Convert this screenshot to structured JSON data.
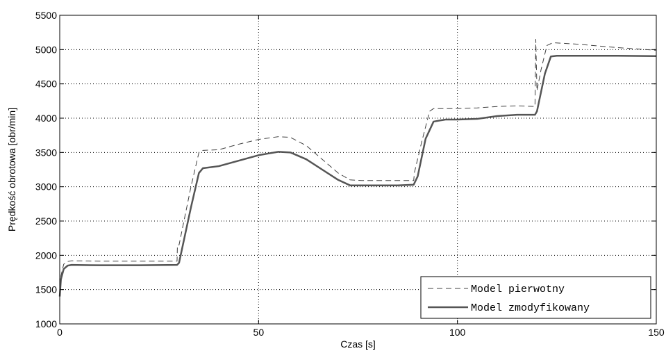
{
  "chart_data": {
    "type": "line",
    "title": "",
    "xlabel": "Czas [s]",
    "ylabel": "Prędkość obrotowa [obr/min]",
    "xlim": [
      0,
      150
    ],
    "ylim": [
      1000,
      5500
    ],
    "xticks": [
      0,
      50,
      100,
      150
    ],
    "yticks": [
      1000,
      1500,
      2000,
      2500,
      3000,
      3500,
      4000,
      4500,
      5000,
      5500
    ],
    "grid": true,
    "legend_position": "bottom-right",
    "series": [
      {
        "name": "Model pierwotny",
        "style": "dashed",
        "color": "#404040",
        "points": [
          [
            0,
            1420
          ],
          [
            0.3,
            1700
          ],
          [
            1,
            1870
          ],
          [
            2,
            1910
          ],
          [
            3,
            1920
          ],
          [
            10,
            1915
          ],
          [
            20,
            1915
          ],
          [
            29.5,
            1915
          ],
          [
            29.6,
            2150
          ],
          [
            30,
            2150
          ],
          [
            33,
            3000
          ],
          [
            35,
            3500
          ],
          [
            36,
            3530
          ],
          [
            40,
            3540
          ],
          [
            45,
            3620
          ],
          [
            50,
            3690
          ],
          [
            55,
            3730
          ],
          [
            58,
            3720
          ],
          [
            62,
            3600
          ],
          [
            66,
            3400
          ],
          [
            70,
            3200
          ],
          [
            73,
            3100
          ],
          [
            76,
            3090
          ],
          [
            85,
            3090
          ],
          [
            89,
            3090
          ],
          [
            89.2,
            3210
          ],
          [
            91,
            3650
          ],
          [
            93,
            4100
          ],
          [
            94,
            4140
          ],
          [
            100,
            4140
          ],
          [
            105,
            4150
          ],
          [
            110,
            4170
          ],
          [
            115,
            4180
          ],
          [
            119.5,
            4170
          ],
          [
            119.7,
            5150
          ],
          [
            120,
            4400
          ],
          [
            121,
            4700
          ],
          [
            122.5,
            5060
          ],
          [
            124,
            5100
          ],
          [
            130,
            5080
          ],
          [
            140,
            5030
          ],
          [
            150,
            4990
          ]
        ]
      },
      {
        "name": "Model zmodyfikowany",
        "style": "solid",
        "color": "#555555",
        "points": [
          [
            0,
            1400
          ],
          [
            0.3,
            1650
          ],
          [
            1,
            1800
          ],
          [
            2,
            1850
          ],
          [
            3,
            1860
          ],
          [
            10,
            1855
          ],
          [
            20,
            1855
          ],
          [
            29.5,
            1860
          ],
          [
            30,
            1890
          ],
          [
            33,
            2700
          ],
          [
            35,
            3200
          ],
          [
            36,
            3270
          ],
          [
            40,
            3300
          ],
          [
            45,
            3380
          ],
          [
            50,
            3460
          ],
          [
            55,
            3510
          ],
          [
            58,
            3500
          ],
          [
            62,
            3400
          ],
          [
            66,
            3250
          ],
          [
            70,
            3100
          ],
          [
            73,
            3020
          ],
          [
            76,
            3020
          ],
          [
            85,
            3020
          ],
          [
            89,
            3030
          ],
          [
            90,
            3150
          ],
          [
            92,
            3700
          ],
          [
            94,
            3950
          ],
          [
            97,
            3980
          ],
          [
            100,
            3980
          ],
          [
            105,
            3990
          ],
          [
            110,
            4030
          ],
          [
            115,
            4050
          ],
          [
            119.5,
            4050
          ],
          [
            120,
            4100
          ],
          [
            122,
            4650
          ],
          [
            123.5,
            4900
          ],
          [
            125,
            4910
          ],
          [
            130,
            4910
          ],
          [
            140,
            4910
          ],
          [
            150,
            4905
          ]
        ]
      }
    ]
  }
}
